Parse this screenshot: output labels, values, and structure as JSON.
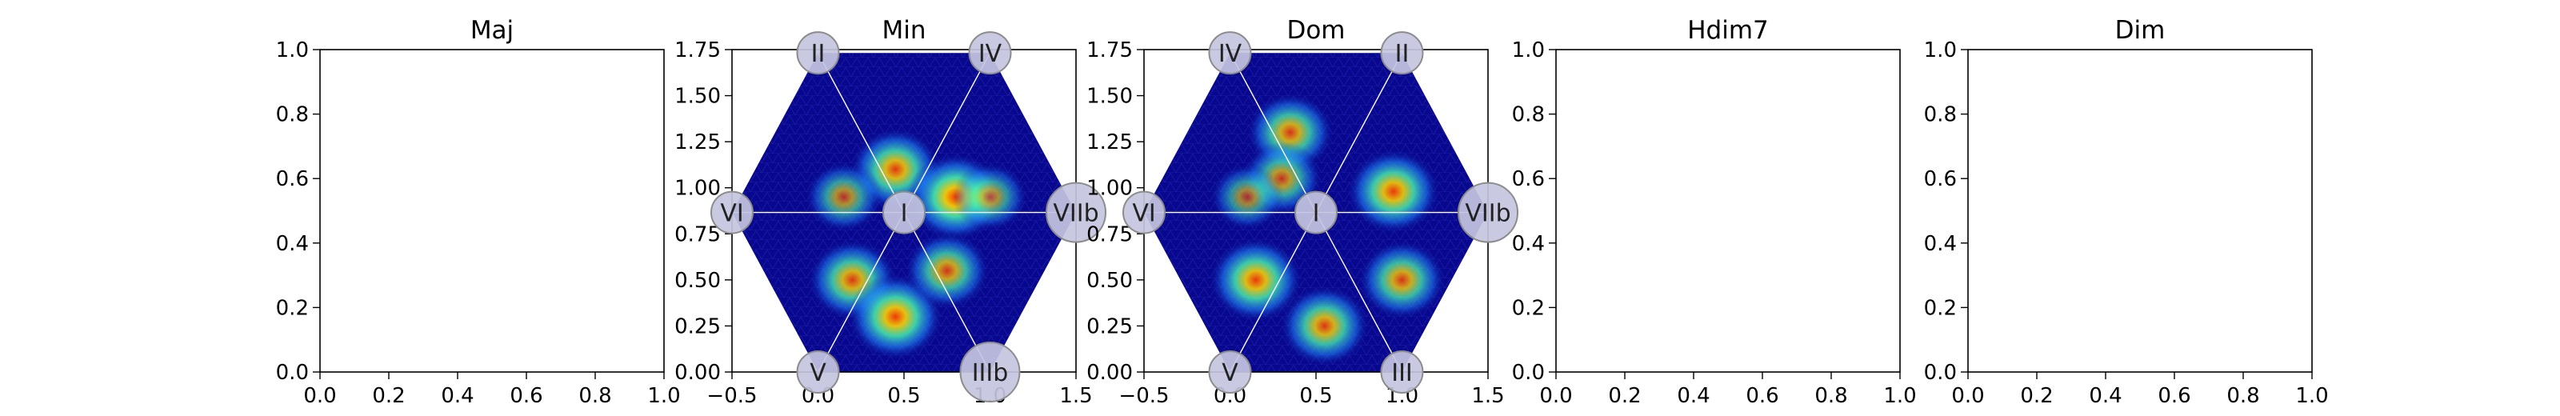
{
  "chart_data": [
    {
      "type": "heatmap",
      "title": "Maj",
      "xlim": [
        0,
        1
      ],
      "ylim": [
        0,
        1
      ],
      "xticks": [
        "0.0",
        "0.2",
        "0.4",
        "0.6",
        "0.8",
        "1.0"
      ],
      "yticks": [
        "0.0",
        "0.2",
        "0.4",
        "0.6",
        "0.8",
        "1.0"
      ],
      "nodes": [],
      "hotspots": []
    },
    {
      "type": "heatmap",
      "title": "Min",
      "xlim": [
        -0.5,
        1.5
      ],
      "ylim": [
        0,
        1.75
      ],
      "xticks": [
        "−0.5",
        "0.0",
        "0.5",
        "1.0",
        "1.5"
      ],
      "yticks": [
        "0.00",
        "0.25",
        "0.50",
        "0.75",
        "1.00",
        "1.25",
        "1.50",
        "1.75"
      ],
      "hexagon": {
        "center": [
          0.5,
          0.866
        ],
        "vertices": [
          [
            0.0,
            1.732
          ],
          [
            1.0,
            1.732
          ],
          [
            1.5,
            0.866
          ],
          [
            1.0,
            0.0
          ],
          [
            0.0,
            0.0
          ],
          [
            -0.5,
            0.866
          ]
        ]
      },
      "nodes": [
        {
          "label": "II",
          "x": 0.0,
          "y": 1.732
        },
        {
          "label": "IV",
          "x": 1.0,
          "y": 1.732
        },
        {
          "label": "VIIb",
          "x": 1.5,
          "y": 0.866
        },
        {
          "label": "IIIb",
          "x": 1.0,
          "y": 0.0
        },
        {
          "label": "V",
          "x": 0.0,
          "y": 0.0
        },
        {
          "label": "VI",
          "x": -0.5,
          "y": 0.866
        },
        {
          "label": "I",
          "x": 0.5,
          "y": 0.866
        }
      ],
      "hotspots": [
        {
          "x": 0.45,
          "y": 1.1,
          "intensity": 0.8
        },
        {
          "x": 0.8,
          "y": 0.95,
          "intensity": 0.95
        },
        {
          "x": 0.15,
          "y": 0.95,
          "intensity": 0.45
        },
        {
          "x": 0.2,
          "y": 0.5,
          "intensity": 0.75
        },
        {
          "x": 0.45,
          "y": 0.3,
          "intensity": 0.9
        },
        {
          "x": 0.75,
          "y": 0.55,
          "intensity": 0.65
        },
        {
          "x": 1.0,
          "y": 0.95,
          "intensity": 0.4
        }
      ]
    },
    {
      "type": "heatmap",
      "title": "Dom",
      "xlim": [
        -0.5,
        1.5
      ],
      "ylim": [
        0,
        1.75
      ],
      "xticks": [
        "−0.5",
        "0.0",
        "0.5",
        "1.0",
        "1.5"
      ],
      "yticks": [
        "0.00",
        "0.25",
        "0.50",
        "0.75",
        "1.00",
        "1.25",
        "1.50",
        "1.75"
      ],
      "hexagon": {
        "center": [
          0.5,
          0.866
        ],
        "vertices": [
          [
            0.0,
            1.732
          ],
          [
            1.0,
            1.732
          ],
          [
            1.5,
            0.866
          ],
          [
            1.0,
            0.0
          ],
          [
            0.0,
            0.0
          ],
          [
            -0.5,
            0.866
          ]
        ]
      },
      "nodes": [
        {
          "label": "IV",
          "x": 0.0,
          "y": 1.732
        },
        {
          "label": "II",
          "x": 1.0,
          "y": 1.732
        },
        {
          "label": "VIIb",
          "x": 1.5,
          "y": 0.866
        },
        {
          "label": "III",
          "x": 1.0,
          "y": 0.0
        },
        {
          "label": "V",
          "x": 0.0,
          "y": 0.0
        },
        {
          "label": "VI",
          "x": -0.5,
          "y": 0.866
        },
        {
          "label": "I",
          "x": 0.5,
          "y": 0.866
        }
      ],
      "hotspots": [
        {
          "x": 0.35,
          "y": 1.3,
          "intensity": 0.7
        },
        {
          "x": 0.3,
          "y": 1.05,
          "intensity": 0.55
        },
        {
          "x": 0.95,
          "y": 0.98,
          "intensity": 0.85
        },
        {
          "x": 0.15,
          "y": 0.5,
          "intensity": 0.85
        },
        {
          "x": 0.55,
          "y": 0.25,
          "intensity": 0.75
        },
        {
          "x": 1.0,
          "y": 0.5,
          "intensity": 0.7
        },
        {
          "x": 0.1,
          "y": 0.95,
          "intensity": 0.35
        }
      ]
    },
    {
      "type": "heatmap",
      "title": "Hdim7",
      "xlim": [
        0,
        1
      ],
      "ylim": [
        0,
        1
      ],
      "xticks": [
        "0.0",
        "0.2",
        "0.4",
        "0.6",
        "0.8",
        "1.0"
      ],
      "yticks": [
        "0.0",
        "0.2",
        "0.4",
        "0.6",
        "0.8",
        "1.0"
      ],
      "nodes": [],
      "hotspots": []
    },
    {
      "type": "heatmap",
      "title": "Dim",
      "xlim": [
        0,
        1
      ],
      "ylim": [
        0,
        1
      ],
      "xticks": [
        "0.0",
        "0.2",
        "0.4",
        "0.6",
        "0.8",
        "1.0"
      ],
      "yticks": [
        "0.0",
        "0.2",
        "0.4",
        "0.6",
        "0.8",
        "1.0"
      ],
      "nodes": [],
      "hotspots": []
    }
  ],
  "colors": {
    "axes_frame": "#000000",
    "hex_background": "#08088f",
    "spoke_line": "#ffffff",
    "node_fill": "#c4c6e0",
    "node_stroke": "#8c8c8c"
  }
}
